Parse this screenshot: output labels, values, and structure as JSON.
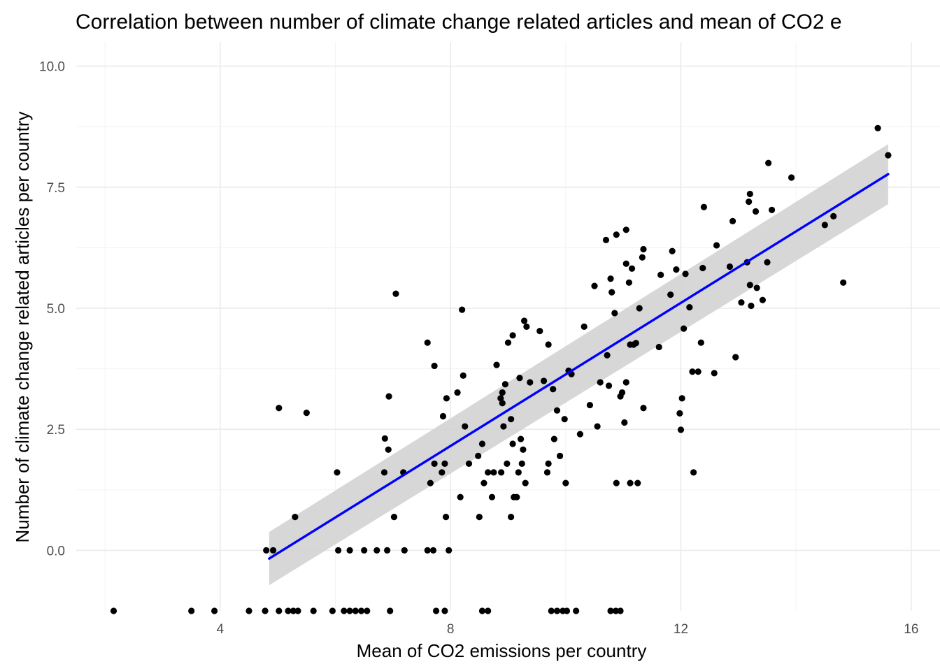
{
  "chart_data": {
    "type": "scatter",
    "title": "Correlation between number of climate change related articles and mean of CO2 e",
    "xlabel": "Mean of CO2 emissions per country",
    "ylabel": "Number of climate change related articles per country",
    "xlim": [
      1.5,
      16.5
    ],
    "ylim": [
      -1.25,
      10.5
    ],
    "x_ticks": [
      4,
      8,
      12,
      16
    ],
    "x_tick_labels": [
      "4",
      "8",
      "12",
      "16"
    ],
    "y_ticks": [
      0,
      2.5,
      5,
      7.5,
      10
    ],
    "y_tick_labels": [
      "0.0",
      "2.5",
      "5.0",
      "7.5",
      "10.0"
    ],
    "grid": true,
    "point_color": "#000000",
    "fit_line_color": "#0000ff",
    "confidence_band_color": "#d3d3d3",
    "fit_line": {
      "x": [
        4.85,
        15.6
      ],
      "y": [
        -0.17,
        7.77
      ]
    },
    "confidence_band": {
      "x": [
        4.85,
        15.6
      ],
      "lower": [
        -0.72,
        7.15
      ],
      "upper": [
        0.38,
        8.39
      ]
    },
    "series": [
      {
        "values": [
          {
            "x": 2.15,
            "y": -1.25
          },
          {
            "x": 3.5,
            "y": -1.25
          },
          {
            "x": 3.9,
            "y": -1.25
          },
          {
            "x": 4.5,
            "y": -1.25
          },
          {
            "x": 4.78,
            "y": -1.25
          },
          {
            "x": 5.02,
            "y": -1.25
          },
          {
            "x": 5.18,
            "y": -1.25
          },
          {
            "x": 5.27,
            "y": -1.25
          },
          {
            "x": 5.35,
            "y": -1.25
          },
          {
            "x": 5.62,
            "y": -1.25
          },
          {
            "x": 5.95,
            "y": -1.25
          },
          {
            "x": 6.15,
            "y": -1.25
          },
          {
            "x": 6.25,
            "y": -1.25
          },
          {
            "x": 6.35,
            "y": -1.25
          },
          {
            "x": 6.45,
            "y": -1.25
          },
          {
            "x": 6.55,
            "y": -1.25
          },
          {
            "x": 6.95,
            "y": -1.25
          },
          {
            "x": 7.75,
            "y": -1.25
          },
          {
            "x": 7.9,
            "y": -1.25
          },
          {
            "x": 8.55,
            "y": -1.25
          },
          {
            "x": 8.65,
            "y": -1.25
          },
          {
            "x": 9.75,
            "y": -1.25
          },
          {
            "x": 9.85,
            "y": -1.25
          },
          {
            "x": 9.95,
            "y": -1.25
          },
          {
            "x": 10.02,
            "y": -1.25
          },
          {
            "x": 10.18,
            "y": -1.25
          },
          {
            "x": 10.78,
            "y": -1.25
          },
          {
            "x": 10.87,
            "y": -1.25
          },
          {
            "x": 10.95,
            "y": -1.25
          },
          {
            "x": 4.8,
            "y": 0
          },
          {
            "x": 4.92,
            "y": 0
          },
          {
            "x": 6.05,
            "y": 0
          },
          {
            "x": 6.25,
            "y": 0
          },
          {
            "x": 6.5,
            "y": 0
          },
          {
            "x": 6.72,
            "y": 0
          },
          {
            "x": 6.9,
            "y": 0
          },
          {
            "x": 7.2,
            "y": 0
          },
          {
            "x": 7.6,
            "y": 0
          },
          {
            "x": 7.7,
            "y": 0
          },
          {
            "x": 7.97,
            "y": 0
          },
          {
            "x": 5.02,
            "y": 2.94
          },
          {
            "x": 5.5,
            "y": 2.84
          },
          {
            "x": 5.3,
            "y": 0.69
          },
          {
            "x": 6.03,
            "y": 1.61
          },
          {
            "x": 6.85,
            "y": 1.61
          },
          {
            "x": 6.86,
            "y": 2.31
          },
          {
            "x": 6.92,
            "y": 2.08
          },
          {
            "x": 6.93,
            "y": 3.18
          },
          {
            "x": 7.02,
            "y": 0.69
          },
          {
            "x": 7.05,
            "y": 5.3
          },
          {
            "x": 7.18,
            "y": 1.61
          },
          {
            "x": 7.6,
            "y": 4.29
          },
          {
            "x": 7.65,
            "y": 1.39
          },
          {
            "x": 7.72,
            "y": 3.81
          },
          {
            "x": 7.72,
            "y": 1.79
          },
          {
            "x": 7.85,
            "y": 1.61
          },
          {
            "x": 7.87,
            "y": 2.77
          },
          {
            "x": 7.9,
            "y": 1.79
          },
          {
            "x": 7.92,
            "y": 0.69
          },
          {
            "x": 7.93,
            "y": 3.14
          },
          {
            "x": 8.12,
            "y": 3.26
          },
          {
            "x": 8.17,
            "y": 1.1
          },
          {
            "x": 8.2,
            "y": 4.97
          },
          {
            "x": 8.22,
            "y": 3.61
          },
          {
            "x": 8.25,
            "y": 2.56
          },
          {
            "x": 8.32,
            "y": 1.79
          },
          {
            "x": 8.48,
            "y": 1.95
          },
          {
            "x": 8.5,
            "y": 0.69
          },
          {
            "x": 8.55,
            "y": 2.2
          },
          {
            "x": 8.58,
            "y": 1.39
          },
          {
            "x": 8.65,
            "y": 1.61
          },
          {
            "x": 8.72,
            "y": 1.1
          },
          {
            "x": 8.75,
            "y": 1.61
          },
          {
            "x": 8.8,
            "y": 3.83
          },
          {
            "x": 8.87,
            "y": 3.14
          },
          {
            "x": 8.88,
            "y": 1.61
          },
          {
            "x": 8.9,
            "y": 3.04
          },
          {
            "x": 8.9,
            "y": 3.26
          },
          {
            "x": 8.92,
            "y": 2.56
          },
          {
            "x": 8.95,
            "y": 3.43
          },
          {
            "x": 8.98,
            "y": 1.79
          },
          {
            "x": 9.0,
            "y": 4.29
          },
          {
            "x": 9.05,
            "y": 0.69
          },
          {
            "x": 9.05,
            "y": 2.71
          },
          {
            "x": 9.08,
            "y": 4.44
          },
          {
            "x": 9.08,
            "y": 2.2
          },
          {
            "x": 9.1,
            "y": 1.1
          },
          {
            "x": 9.15,
            "y": 1.1
          },
          {
            "x": 9.18,
            "y": 1.61
          },
          {
            "x": 9.2,
            "y": 3.56
          },
          {
            "x": 9.22,
            "y": 2.3
          },
          {
            "x": 9.24,
            "y": 1.79
          },
          {
            "x": 9.26,
            "y": 2.08
          },
          {
            "x": 9.28,
            "y": 4.74
          },
          {
            "x": 9.32,
            "y": 4.62
          },
          {
            "x": 9.3,
            "y": 1.39
          },
          {
            "x": 9.38,
            "y": 3.47
          },
          {
            "x": 9.55,
            "y": 4.53
          },
          {
            "x": 9.62,
            "y": 3.5
          },
          {
            "x": 9.68,
            "y": 1.61
          },
          {
            "x": 9.7,
            "y": 4.25
          },
          {
            "x": 9.7,
            "y": 1.79
          },
          {
            "x": 9.78,
            "y": 3.33
          },
          {
            "x": 9.8,
            "y": 2.3
          },
          {
            "x": 9.85,
            "y": 2.89
          },
          {
            "x": 9.9,
            "y": 1.95
          },
          {
            "x": 9.98,
            "y": 2.71
          },
          {
            "x": 10.0,
            "y": 1.39
          },
          {
            "x": 10.05,
            "y": 3.71
          },
          {
            "x": 10.1,
            "y": 3.64
          },
          {
            "x": 10.25,
            "y": 2.4
          },
          {
            "x": 10.32,
            "y": 4.62
          },
          {
            "x": 10.42,
            "y": 3.0
          },
          {
            "x": 10.5,
            "y": 5.46
          },
          {
            "x": 10.55,
            "y": 2.56
          },
          {
            "x": 10.6,
            "y": 3.47
          },
          {
            "x": 10.7,
            "y": 6.41
          },
          {
            "x": 10.72,
            "y": 4.03
          },
          {
            "x": 10.75,
            "y": 3.4
          },
          {
            "x": 10.78,
            "y": 5.61
          },
          {
            "x": 10.8,
            "y": 5.33
          },
          {
            "x": 10.85,
            "y": 4.9
          },
          {
            "x": 10.88,
            "y": 1.39
          },
          {
            "x": 10.88,
            "y": 6.52
          },
          {
            "x": 10.95,
            "y": 3.18
          },
          {
            "x": 10.98,
            "y": 3.26
          },
          {
            "x": 11.02,
            "y": 2.64
          },
          {
            "x": 11.05,
            "y": 3.47
          },
          {
            "x": 11.05,
            "y": 5.92
          },
          {
            "x": 11.05,
            "y": 6.62
          },
          {
            "x": 11.1,
            "y": 5.53
          },
          {
            "x": 11.12,
            "y": 4.25
          },
          {
            "x": 11.12,
            "y": 1.39
          },
          {
            "x": 11.15,
            "y": 5.82
          },
          {
            "x": 11.18,
            "y": 4.25
          },
          {
            "x": 11.22,
            "y": 4.28
          },
          {
            "x": 11.25,
            "y": 1.39
          },
          {
            "x": 11.28,
            "y": 5.0
          },
          {
            "x": 11.33,
            "y": 6.05
          },
          {
            "x": 11.35,
            "y": 6.22
          },
          {
            "x": 11.35,
            "y": 2.94
          },
          {
            "x": 11.62,
            "y": 4.2
          },
          {
            "x": 11.65,
            "y": 5.69
          },
          {
            "x": 11.82,
            "y": 5.28
          },
          {
            "x": 11.85,
            "y": 6.18
          },
          {
            "x": 11.92,
            "y": 5.8
          },
          {
            "x": 11.98,
            "y": 2.83
          },
          {
            "x": 12.0,
            "y": 2.49
          },
          {
            "x": 12.02,
            "y": 3.14
          },
          {
            "x": 12.05,
            "y": 4.58
          },
          {
            "x": 12.08,
            "y": 5.71
          },
          {
            "x": 12.15,
            "y": 5.02
          },
          {
            "x": 12.2,
            "y": 3.69
          },
          {
            "x": 12.22,
            "y": 1.61
          },
          {
            "x": 12.3,
            "y": 3.69
          },
          {
            "x": 12.35,
            "y": 4.29
          },
          {
            "x": 12.38,
            "y": 5.83
          },
          {
            "x": 12.4,
            "y": 7.09
          },
          {
            "x": 12.58,
            "y": 3.66
          },
          {
            "x": 12.62,
            "y": 6.3
          },
          {
            "x": 12.85,
            "y": 5.86
          },
          {
            "x": 12.9,
            "y": 6.8
          },
          {
            "x": 12.95,
            "y": 3.99
          },
          {
            "x": 13.05,
            "y": 5.12
          },
          {
            "x": 13.15,
            "y": 5.95
          },
          {
            "x": 13.18,
            "y": 7.2
          },
          {
            "x": 13.2,
            "y": 7.36
          },
          {
            "x": 13.2,
            "y": 5.48
          },
          {
            "x": 13.22,
            "y": 5.05
          },
          {
            "x": 13.3,
            "y": 7.0
          },
          {
            "x": 13.32,
            "y": 5.42
          },
          {
            "x": 13.42,
            "y": 5.17
          },
          {
            "x": 13.5,
            "y": 5.95
          },
          {
            "x": 13.52,
            "y": 8.0
          },
          {
            "x": 13.58,
            "y": 7.03
          },
          {
            "x": 13.92,
            "y": 7.7
          },
          {
            "x": 14.5,
            "y": 6.72
          },
          {
            "x": 14.65,
            "y": 6.9
          },
          {
            "x": 14.82,
            "y": 5.53
          },
          {
            "x": 15.42,
            "y": 8.72
          },
          {
            "x": 15.6,
            "y": 8.16
          }
        ]
      }
    ]
  }
}
